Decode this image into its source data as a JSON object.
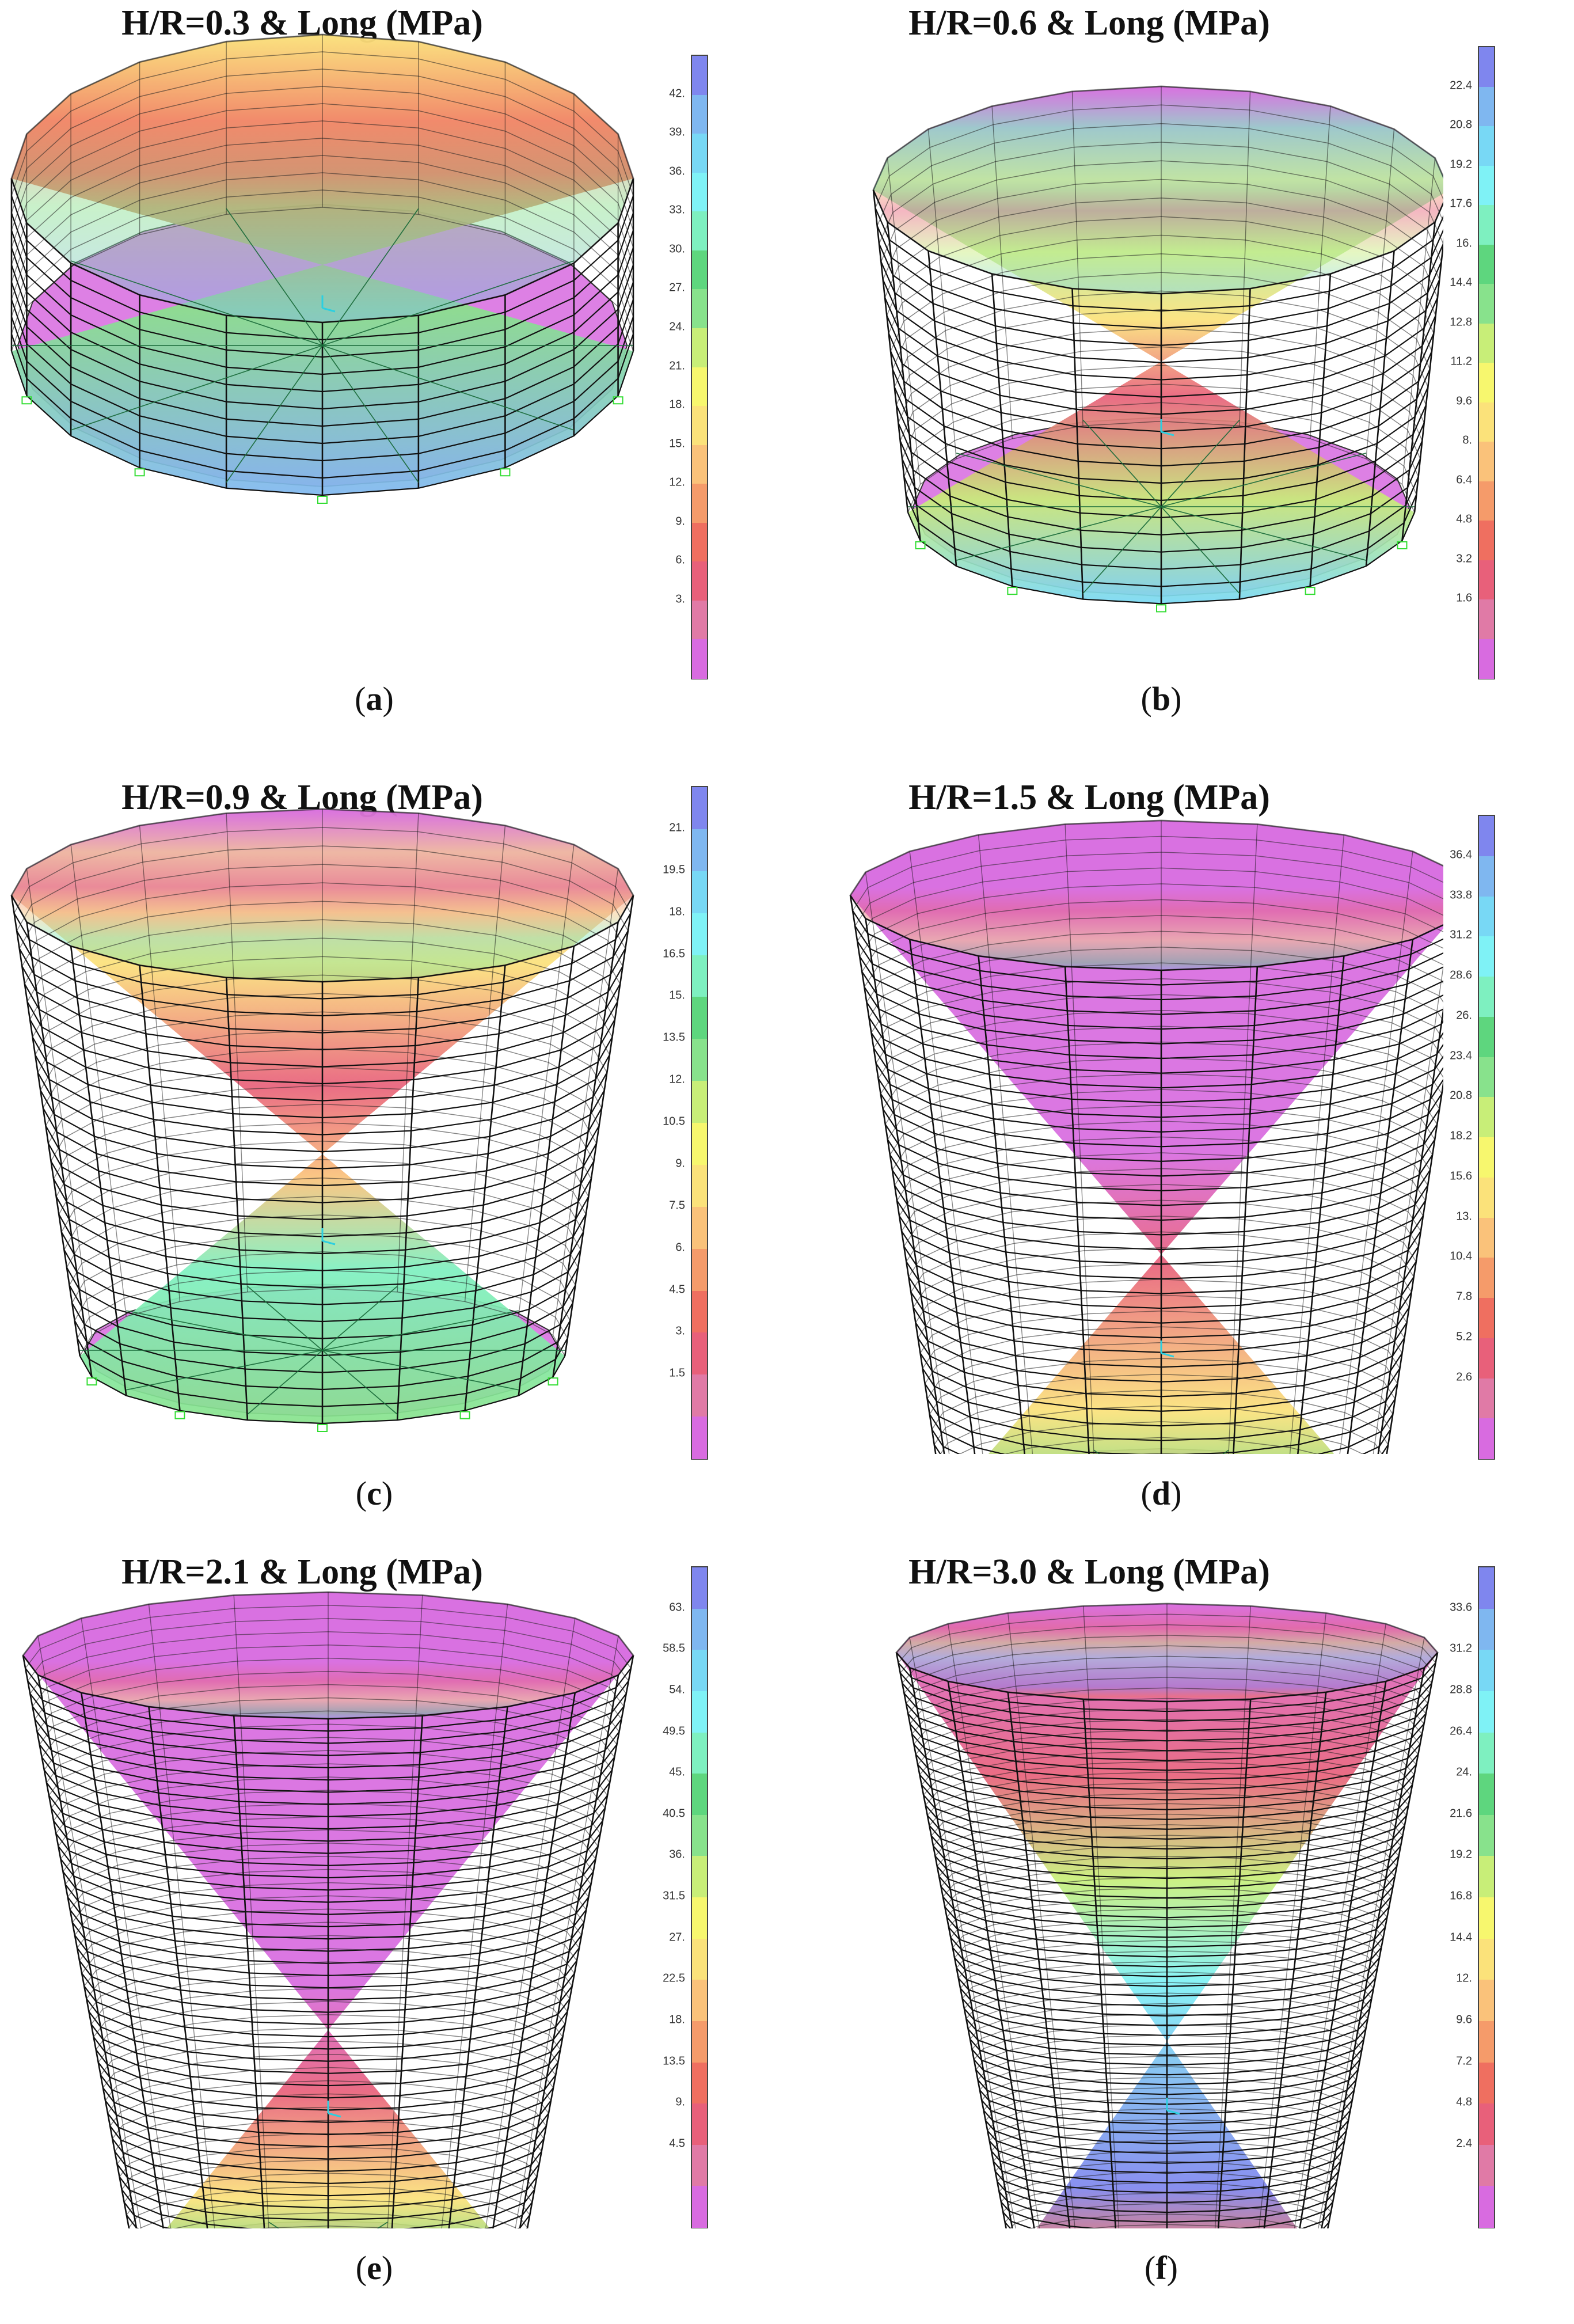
{
  "colors": [
    "#d86be0",
    "#e07aa6",
    "#e8607a",
    "#ef6f60",
    "#f59b6a",
    "#fac27a",
    "#fbe27a",
    "#f7f76e",
    "#c8ee78",
    "#88e28c",
    "#5ed67e",
    "#7ef0c0",
    "#7ff2f6",
    "#78d8f5",
    "#7fb7f0",
    "#7f86ee"
  ],
  "panels": [
    {
      "title": "H/R=0.3 & Long (MPa)",
      "caption_letter": "a",
      "ticks": [
        "42.",
        "39.",
        "36.",
        "33.",
        "30.",
        "27.",
        "24.",
        "21.",
        "18.",
        "15.",
        "12.",
        "9.",
        "6.",
        "3."
      ]
    },
    {
      "title": "H/R=0.6 & Long (MPa)",
      "caption_letter": "b",
      "ticks": [
        "22.4",
        "20.8",
        "19.2",
        "17.6",
        "16.",
        "14.4",
        "12.8",
        "11.2",
        "9.6",
        "8.",
        "6.4",
        "4.8",
        "3.2",
        "1.6"
      ]
    },
    {
      "title": "H/R=0.9 & Long (MPa)",
      "caption_letter": "c",
      "ticks": [
        "21.",
        "19.5",
        "18.",
        "16.5",
        "15.",
        "13.5",
        "12.",
        "10.5",
        "9.",
        "7.5",
        "6.",
        "4.5",
        "3.",
        "1.5"
      ]
    },
    {
      "title": "H/R=1.5 & Long (MPa)",
      "caption_letter": "d",
      "ticks": [
        "36.4",
        "33.8",
        "31.2",
        "28.6",
        "26.",
        "23.4",
        "20.8",
        "18.2",
        "15.6",
        "13.",
        "10.4",
        "7.8",
        "5.2",
        "2.6"
      ]
    },
    {
      "title": "H/R=2.1 & Long (MPa)",
      "caption_letter": "e",
      "ticks": [
        "63.",
        "58.5",
        "54.",
        "49.5",
        "45.",
        "40.5",
        "36.",
        "31.5",
        "27.",
        "22.5",
        "18.",
        "13.5",
        "9.",
        "4.5"
      ]
    },
    {
      "title": "H/R=3.0 & Long (MPa)",
      "caption_letter": "f",
      "ticks": [
        "33.6",
        "31.2",
        "28.8",
        "26.4",
        "24.",
        "21.6",
        "19.2",
        "16.8",
        "14.4",
        "12.",
        "9.6",
        "7.2",
        "4.8",
        "2.4"
      ]
    }
  ]
}
